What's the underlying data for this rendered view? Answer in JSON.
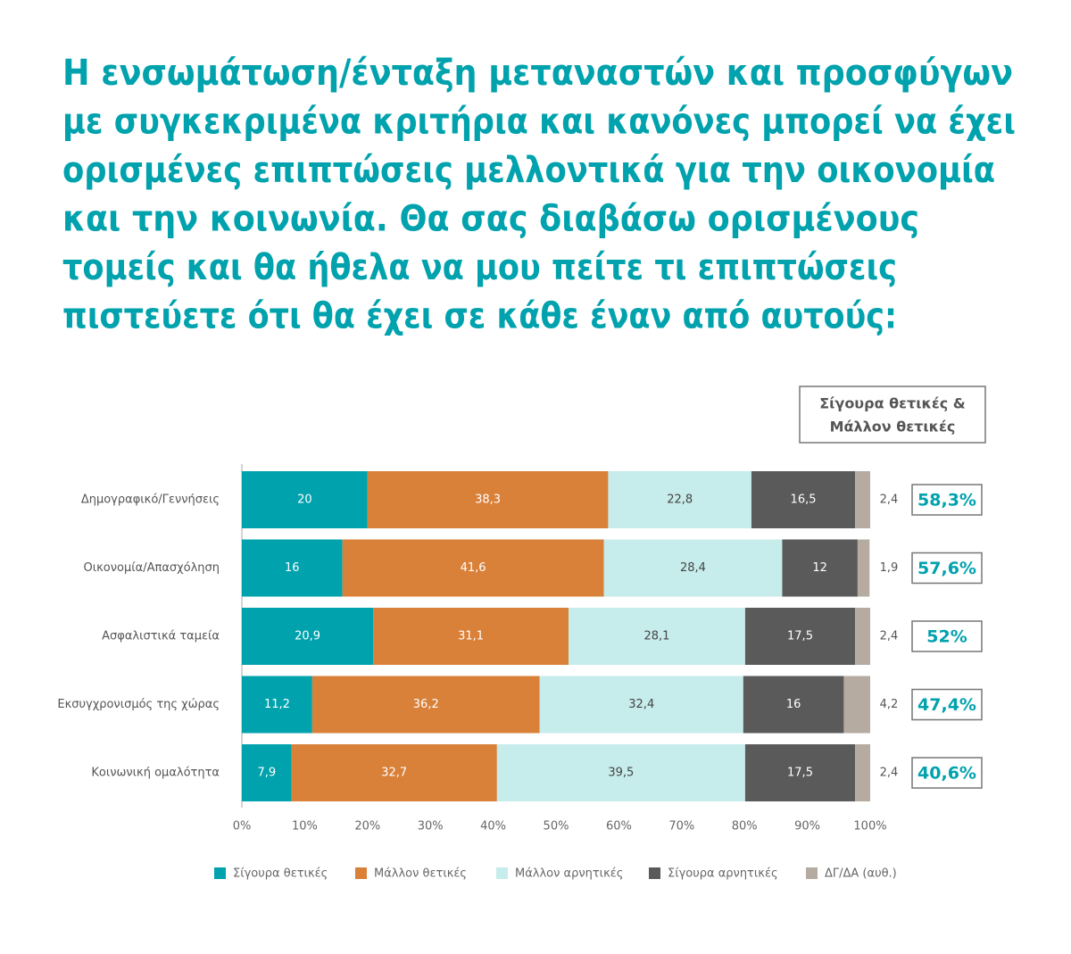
{
  "chart_data": {
    "type": "stacked_barh",
    "title": [
      "Η ενσωμάτωση/ένταξη μεταναστών και προσφύγων",
      "με συγκεκριμένα κριτήρια και κανόνες μπορεί να έχει",
      "ορισμένες επιπτώσεις μελλοντικά για την οικονομία",
      "και την κοινωνία. Θα σας διαβάσω ορισμένους",
      "τομείς και θα ήθελα να μου πείτε τι επιπτώσεις",
      "πιστεύετε ότι θα έχει σε κάθε έναν από αυτούς:"
    ],
    "categories": [
      "Δημογραφικό/Γεννήσεις",
      "Οικονομία/Απασχόληση",
      "Ασφαλιστικά ταμεία",
      "Εκσυγχρονισμός της χώρας",
      "Κοινωνική ομαλότητα"
    ],
    "series": [
      {
        "name": "Σίγουρα θετικές",
        "color": "#00a2ad",
        "values": [
          20,
          16,
          20.9,
          11.2,
          7.9
        ],
        "value_labels": [
          "20",
          "16",
          "20,9",
          "11,2",
          "7,9"
        ]
      },
      {
        "name": "Μάλλον θετικές",
        "color": "#d98039",
        "values": [
          38.3,
          41.6,
          31.1,
          36.2,
          32.7
        ],
        "value_labels": [
          "38,3",
          "41,6",
          "31,1",
          "36,2",
          "32,7"
        ]
      },
      {
        "name": "Μάλλον αρνητικές",
        "color": "#c6eceb",
        "values": [
          22.8,
          28.4,
          28.1,
          32.4,
          39.5
        ],
        "value_labels": [
          "22,8",
          "28,4",
          "28,1",
          "32,4",
          "39,5"
        ]
      },
      {
        "name": "Σίγουρα αρνητικές",
        "color": "#5a5a5a",
        "values": [
          16.5,
          12,
          17.5,
          16,
          17.5
        ],
        "value_labels": [
          "16,5",
          "12",
          "17,5",
          "16",
          "17,5"
        ]
      },
      {
        "name": "ΔΓ/ΔΑ (αυθ.)",
        "color": "#b5aba1",
        "values": [
          2.4,
          1.9,
          2.4,
          4.2,
          2.4
        ],
        "value_labels": [
          "2,4",
          "1,9",
          "2,4",
          "4,2",
          "2,4"
        ]
      }
    ],
    "xlim": [
      0,
      100
    ],
    "xticks": [
      {
        "value": 0,
        "label": "0%"
      },
      {
        "value": 10,
        "label": "10%"
      },
      {
        "value": 20,
        "label": "20%"
      },
      {
        "value": 30,
        "label": "30%"
      },
      {
        "value": 40,
        "label": "40%"
      },
      {
        "value": 50,
        "label": "50%"
      },
      {
        "value": 60,
        "label": "60%"
      },
      {
        "value": 70,
        "label": "70%"
      },
      {
        "value": 80,
        "label": "80%"
      },
      {
        "value": 90,
        "label": "90%"
      },
      {
        "value": 100,
        "label": "100%"
      }
    ],
    "totals": {
      "title": [
        "Σίγουρα θετικές &",
        "Μάλλον θετικές"
      ],
      "values": [
        58.3,
        57.6,
        52,
        47.4,
        40.6
      ],
      "value_labels": [
        "58,3%",
        "57,6%",
        "52%",
        "47,4%",
        "40,6%"
      ]
    },
    "legend": "bottom"
  }
}
